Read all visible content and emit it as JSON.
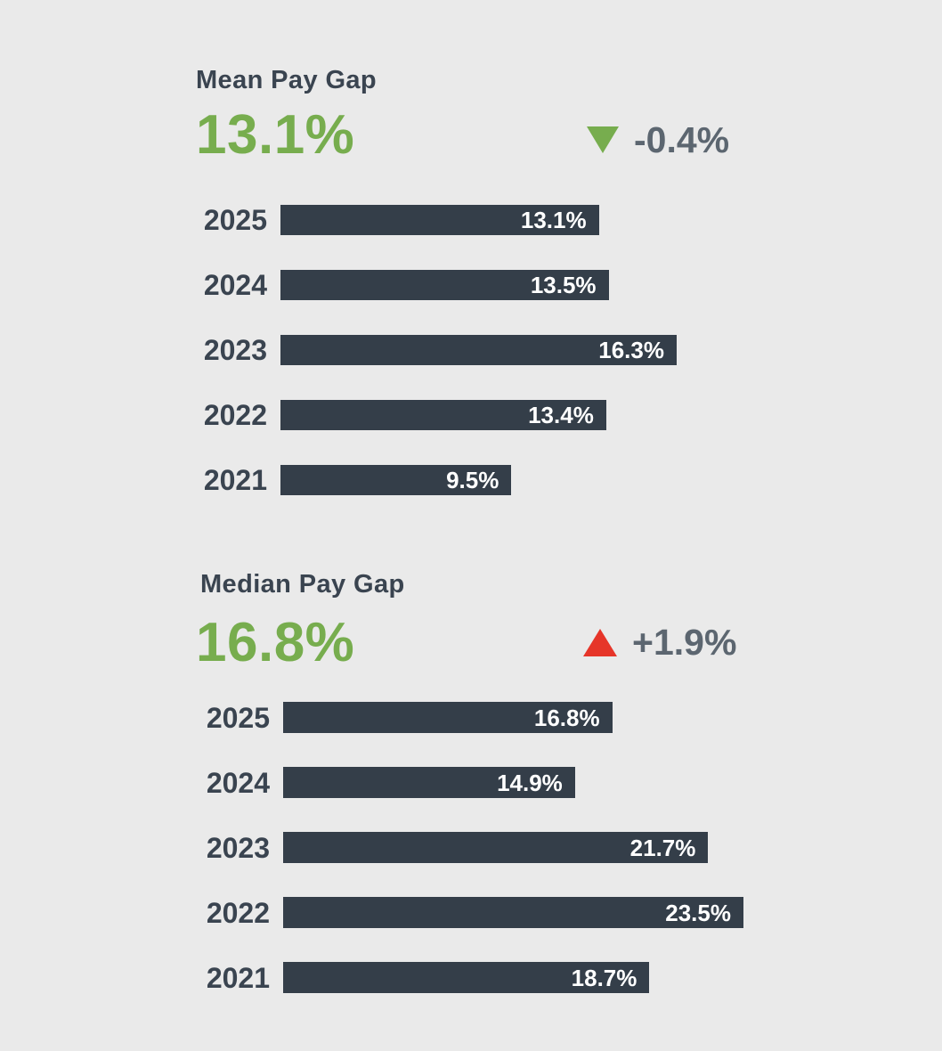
{
  "colors": {
    "background": "#EAEAEA",
    "bar": "#343E49",
    "accent_green": "#77AD4E",
    "accent_red": "#E63529",
    "heading_text": "#3A4450",
    "delta_text": "#5C6670",
    "bar_value_text": "#FFFFFF"
  },
  "chart_data": [
    {
      "type": "bar",
      "orientation": "horizontal",
      "title": "Mean Pay Gap",
      "headline": "13.1%",
      "delta": {
        "label": "-0.4%",
        "direction": "down",
        "color": "#77AD4E"
      },
      "categories": [
        "2025",
        "2024",
        "2023",
        "2022",
        "2021"
      ],
      "values": [
        13.1,
        13.5,
        16.3,
        13.4,
        9.5
      ],
      "value_labels": [
        "13.1%",
        "13.5%",
        "16.3%",
        "13.4%",
        "9.5%"
      ],
      "unit": "%",
      "xlim": [
        0,
        16.3
      ],
      "grid": false,
      "legend": false
    },
    {
      "type": "bar",
      "orientation": "horizontal",
      "title": "Median Pay Gap",
      "headline": "16.8%",
      "delta": {
        "label": "+1.9%",
        "direction": "up",
        "color": "#E63529"
      },
      "categories": [
        "2025",
        "2024",
        "2023",
        "2022",
        "2021"
      ],
      "values": [
        16.8,
        14.9,
        21.7,
        23.5,
        18.7
      ],
      "value_labels": [
        "16.8%",
        "14.9%",
        "21.7%",
        "23.5%",
        "18.7%"
      ],
      "unit": "%",
      "xlim": [
        0,
        23.5
      ],
      "grid": false,
      "legend": false
    }
  ]
}
